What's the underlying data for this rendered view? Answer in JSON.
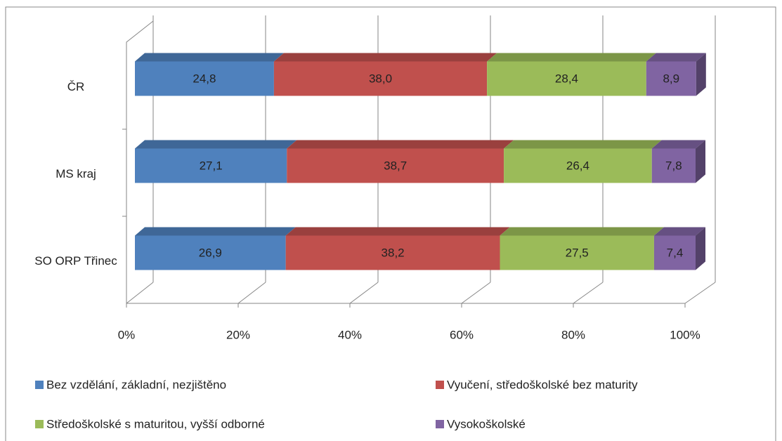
{
  "chart_data": {
    "type": "bar3d_stacked_horizontal",
    "categories": [
      "ČR",
      "MS kraj",
      "SO ORP Třinec"
    ],
    "series": [
      {
        "name": "Bez vzdělání, základní, nezjištěno",
        "color": "#4f81bd",
        "values": [
          24.8,
          27.1,
          26.9
        ],
        "value_labels": [
          "24,8",
          "27,1",
          "26,9"
        ]
      },
      {
        "name": "Vyučení, středoškolské bez maturity",
        "color": "#c0504d",
        "values": [
          38.0,
          38.7,
          38.2
        ],
        "value_labels": [
          "38,0",
          "38,7",
          "38,2"
        ]
      },
      {
        "name": "Středoškolské s maturitou, vyšší odborné",
        "color": "#9bbb59",
        "values": [
          28.4,
          26.4,
          27.5
        ],
        "value_labels": [
          "28,4",
          "26,4",
          "27,5"
        ]
      },
      {
        "name": "Vysokoškolské",
        "color": "#8064a2",
        "values": [
          8.9,
          7.8,
          7.4
        ],
        "value_labels": [
          "8,9",
          "7,8",
          "7,4"
        ]
      }
    ],
    "xlim": [
      0,
      100
    ],
    "xticks": [
      {
        "value": 0,
        "label": "0%"
      },
      {
        "value": 20,
        "label": "20%"
      },
      {
        "value": 40,
        "label": "40%"
      },
      {
        "value": 60,
        "label": "60%"
      },
      {
        "value": 80,
        "label": "80%"
      },
      {
        "value": 100,
        "label": "100%"
      }
    ],
    "grid": true
  }
}
